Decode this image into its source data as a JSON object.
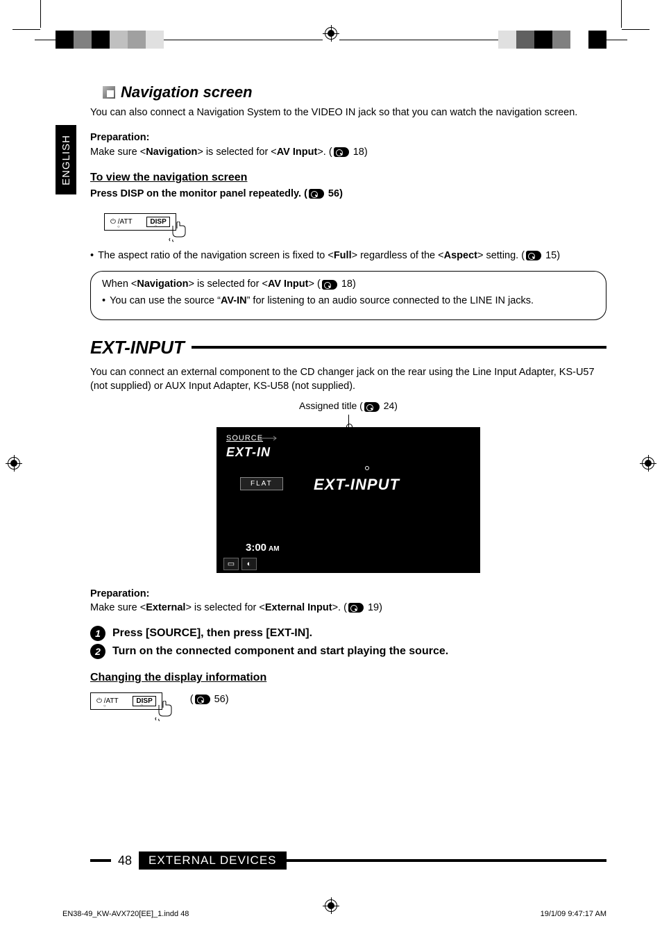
{
  "lang_tab": "ENGLISH",
  "top_strip_left": [
    "#000000",
    "#808080",
    "#000000",
    "#c0c0c0",
    "#a0a0a0",
    "#e0e0e0"
  ],
  "top_strip_right": [
    "#e0e0e0",
    "#606060",
    "#000000",
    "#808080",
    "#ffffff",
    "#000000"
  ],
  "nav": {
    "heading": "Navigation screen",
    "intro": "You can also connect a Navigation System to the VIDEO IN jack so that you can watch the navigation screen.",
    "prep_label": "Preparation:",
    "prep_text_1": "Make sure <",
    "prep_bold_1": "Navigation",
    "prep_text_2": "> is selected for <",
    "prep_bold_2": "AV Input",
    "prep_text_3": ">. (",
    "prep_page": " 18)",
    "view_head": "To view the navigation screen",
    "view_instr_1": "Press DISP on the monitor panel repeatedly. (",
    "view_instr_page": " 56)",
    "panel": {
      "att": "    /ATT",
      "disp": "DISP"
    },
    "aspect_bullet_1": "The aspect ratio of the navigation screen is fixed to <",
    "aspect_bold_1": "Full",
    "aspect_bullet_2": "> regardless of the <",
    "aspect_bold_2": "Aspect",
    "aspect_bullet_3": "> setting. (",
    "aspect_page": " 15)",
    "box_line1_a": "When <",
    "box_line1_b": "Navigation",
    "box_line1_c": "> is selected for <",
    "box_line1_d": "AV Input",
    "box_line1_e": "> (",
    "box_line1_page": " 18)",
    "box_line2_a": "You can use the source “",
    "box_line2_b": "AV-IN",
    "box_line2_c": "” for listening to an audio source connected to the LINE IN jacks."
  },
  "ext": {
    "heading": "EXT-INPUT",
    "intro": "You can connect an external component to the CD changer jack on the rear using the Line Input Adapter, KS-U57 (not supplied) or AUX Input Adapter, KS-U58 (not supplied).",
    "assigned_label_a": "Assigned title (",
    "assigned_label_page": " 24)",
    "screen": {
      "source_label": "SOURCE",
      "source_value": "EXT-IN",
      "flat": "FLAT",
      "center": "EXT-INPUT",
      "time": "3:00",
      "ampm": "AM"
    },
    "prep_label": "Preparation:",
    "prep_text_1": "Make sure <",
    "prep_bold_1": "External",
    "prep_text_2": "> is selected for <",
    "prep_bold_2": "External Input",
    "prep_text_3": ">. (",
    "prep_page": " 19)",
    "step1": "Press [SOURCE], then press [EXT-IN].",
    "step2": " Turn on the connected component and start playing the source.",
    "change_head": "Changing the display information",
    "change_page": " 56)"
  },
  "footer": {
    "page_num": "48",
    "section": "EXTERNAL DEVICES"
  },
  "meta": {
    "file": "EN38-49_KW-AVX720[EE]_1.indd   48",
    "date": "19/1/09   9:47:17 AM"
  }
}
